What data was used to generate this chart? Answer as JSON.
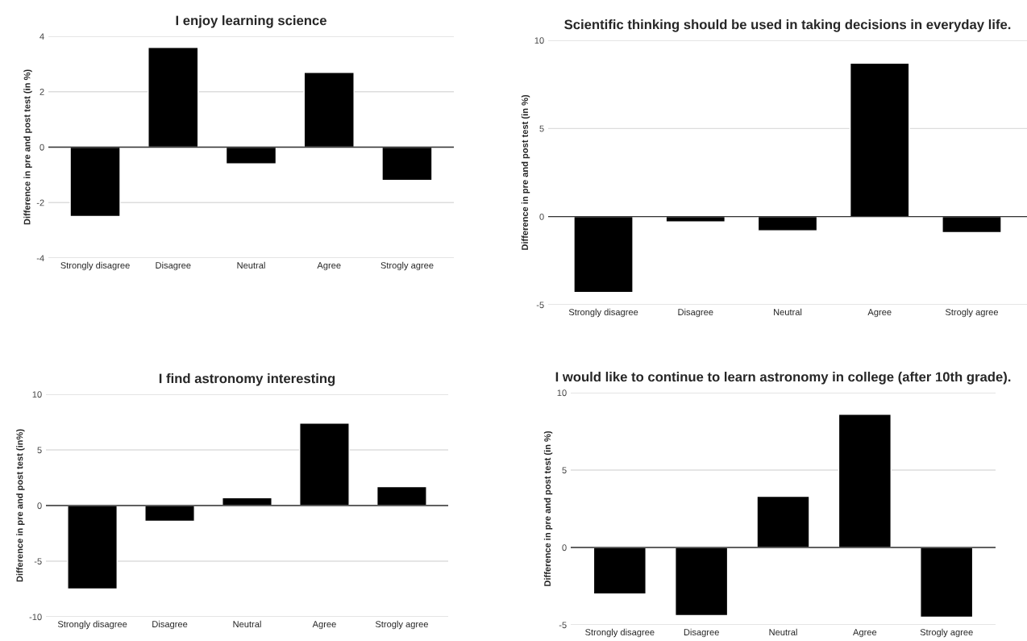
{
  "chart_data": [
    {
      "type": "bar",
      "title": "I enjoy learning science",
      "ylabel": "Difference in pre and post test (in %)",
      "categories": [
        "Strongly disagree",
        "Disagree",
        "Neutral",
        "Agree",
        "Strogly agree"
      ],
      "values": [
        -2.5,
        3.6,
        -0.6,
        2.7,
        -1.2
      ],
      "color": "#000000",
      "ylim": [
        -4,
        4
      ],
      "yticks": [
        -4,
        -2,
        0,
        2,
        4
      ],
      "grid": "y"
    },
    {
      "type": "bar",
      "title": "Scientific thinking should be used in taking decisions in everyday life.",
      "ylabel": "Difference in pre and post test (in %)",
      "categories": [
        "Strongly disagree",
        "Disagree",
        "Neutral",
        "Agree",
        "Strogly agree"
      ],
      "values": [
        -4.3,
        -0.3,
        -0.8,
        8.7,
        -0.9
      ],
      "color": "#000000",
      "ylim": [
        -5,
        10
      ],
      "yticks": [
        -5,
        0,
        5,
        10
      ],
      "grid": "y"
    },
    {
      "type": "bar",
      "title": "I find astronomy interesting",
      "ylabel": "Difference in pre and post test (in%)",
      "categories": [
        "Strongly disagree",
        "Disagree",
        "Neutral",
        "Agree",
        "Strogly agree"
      ],
      "values": [
        -7.5,
        -1.4,
        0.7,
        7.4,
        1.7
      ],
      "color": "#000000",
      "ylim": [
        -10,
        10
      ],
      "yticks": [
        -10,
        -5,
        0,
        5,
        10
      ],
      "grid": "y"
    },
    {
      "type": "bar",
      "title": "I would like to continue to learn astronomy in college (after 10th grade).",
      "ylabel": "Difference in pre and post test (in %)",
      "categories": [
        "Strongly disagree",
        "Disagree",
        "Neutral",
        "Agree",
        "Strogly agree"
      ],
      "values": [
        -3.0,
        -4.4,
        3.3,
        8.6,
        -4.5
      ],
      "color": "#000000",
      "ylim": [
        -5,
        10
      ],
      "yticks": [
        -5,
        0,
        5,
        10
      ],
      "grid": "y"
    }
  ]
}
